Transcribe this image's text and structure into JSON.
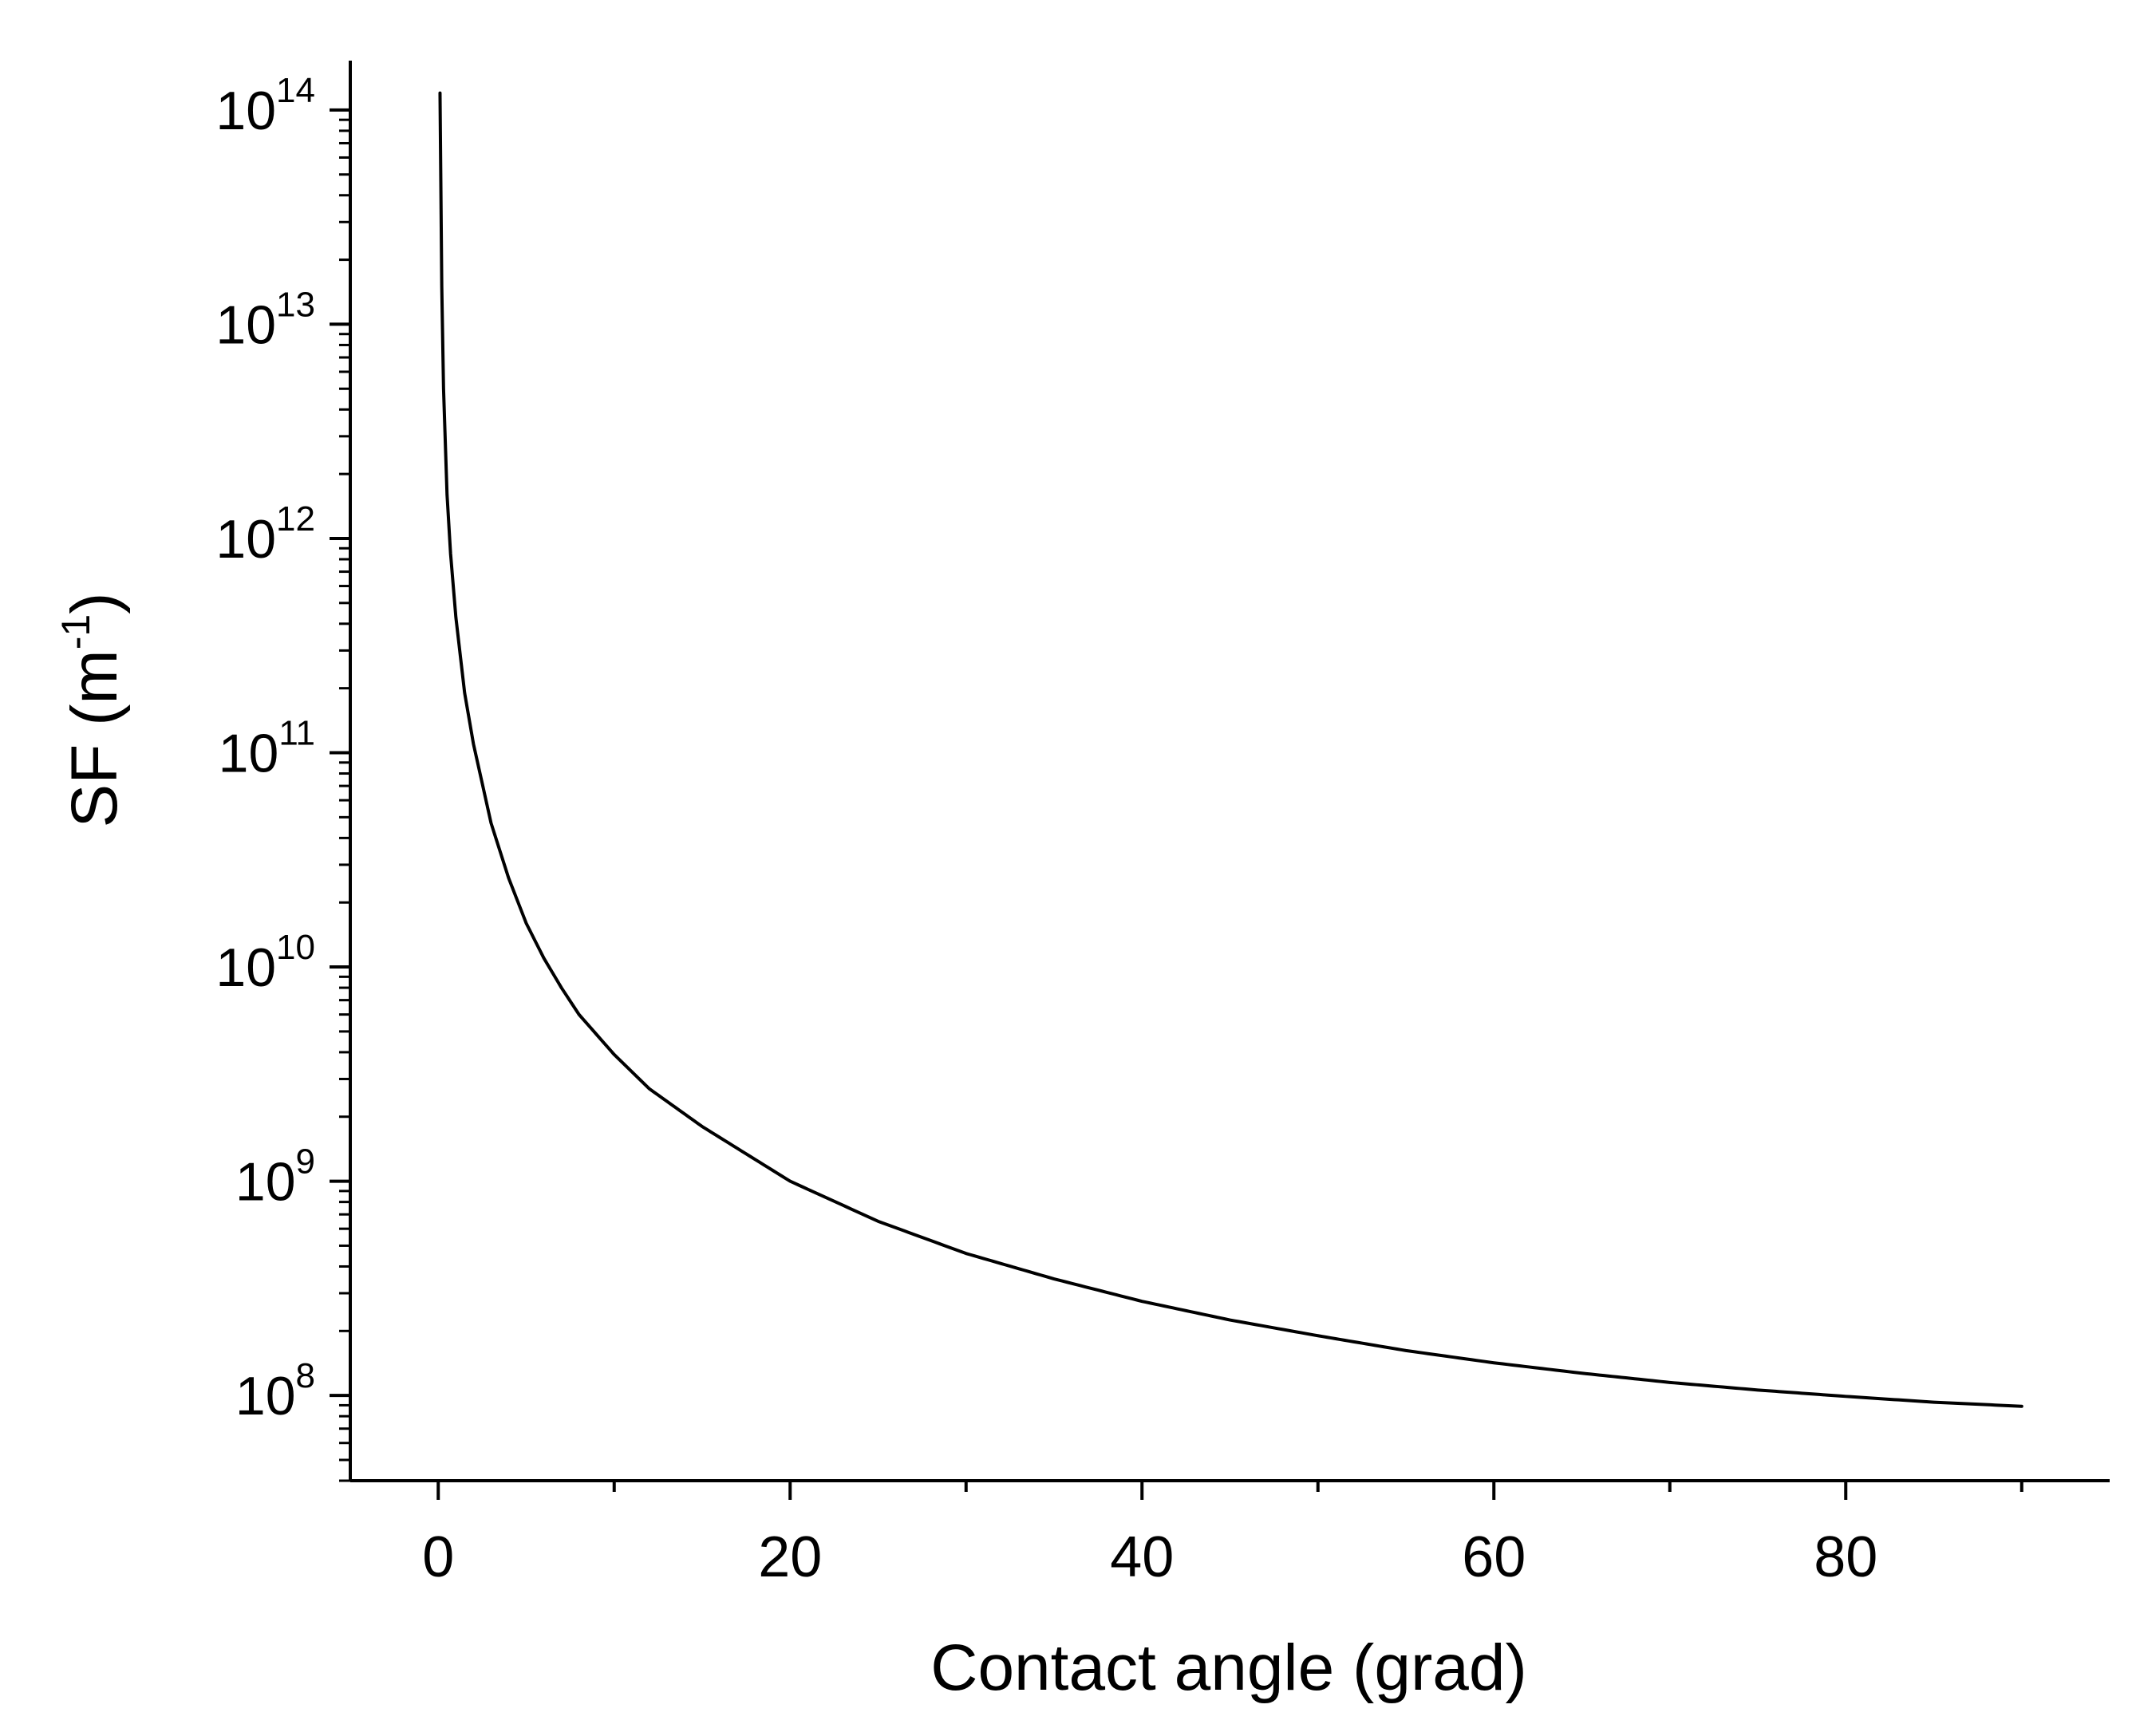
{
  "chart_data": {
    "type": "line",
    "xlabel": "Contact angle (grad)",
    "ylabel": {
      "base": "SF (m",
      "sup": "-1",
      "close": ")"
    },
    "xlim": [
      -5,
      95
    ],
    "ylim": [
      40000000.0,
      170000000000000.0
    ],
    "yscale": "log",
    "grid": false,
    "legend": "none",
    "x_ticks": [
      0,
      20,
      40,
      60,
      80
    ],
    "x_tick_labels": [
      "0",
      "20",
      "40",
      "60",
      "80"
    ],
    "y_ticks": [
      100000000.0,
      1000000000.0,
      10000000000.0,
      100000000000.0,
      1000000000000.0,
      10000000000000.0,
      100000000000000.0
    ],
    "y_tick_labels": [
      {
        "base": "10",
        "exp": "8"
      },
      {
        "base": "10",
        "exp": "9"
      },
      {
        "base": "10",
        "exp": "10"
      },
      {
        "base": "10",
        "exp": "11"
      },
      {
        "base": "10",
        "exp": "12"
      },
      {
        "base": "10",
        "exp": "13"
      },
      {
        "base": "10",
        "exp": "14"
      }
    ],
    "series": [
      {
        "color": "#000000",
        "x": [
          0.1,
          0.2,
          0.3,
          0.5,
          0.7,
          1,
          1.5,
          2,
          3,
          4,
          5,
          6,
          7,
          8,
          10,
          12,
          15,
          20,
          25,
          30,
          35,
          40,
          45,
          50,
          55,
          60,
          65,
          70,
          75,
          80,
          85,
          90
        ],
        "y": [
          120000000000000.0,
          15000000000000.0,
          5000000000000.0,
          1600000000000.0,
          850000000000.0,
          430000000000.0,
          190000000000.0,
          110000000000.0,
          47000000000.0,
          26000000000.0,
          16000000000.0,
          11000000000.0,
          8000000000.0,
          6000000000.0,
          3900000000.0,
          2700000000.0,
          1800000000.0,
          1000000000.0,
          650000000.0,
          460000000.0,
          350000000.0,
          275000000.0,
          225000000.0,
          190000000.0,
          162000000.0,
          142000000.0,
          127000000.0,
          115000000.0,
          106000000.0,
          99000000.0,
          93000000.0,
          89000000.0
        ]
      }
    ]
  }
}
